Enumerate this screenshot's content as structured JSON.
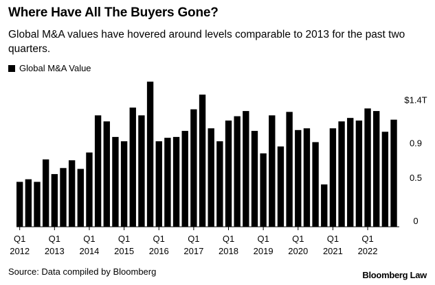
{
  "header": {
    "title": "Where Have All The Buyers Gone?",
    "subtitle": "Global M&A values have hovered around levels comparable to 2013 for the past two quarters."
  },
  "legend": {
    "label": "Global M&A Value"
  },
  "source": "Source: Data compiled by Bloomberg",
  "brand": "Bloomberg Law",
  "chart_data": {
    "type": "bar",
    "categories": [
      "Q1 2012",
      "Q2 2012",
      "Q3 2012",
      "Q4 2012",
      "Q1 2013",
      "Q2 2013",
      "Q3 2013",
      "Q4 2013",
      "Q1 2014",
      "Q2 2014",
      "Q3 2014",
      "Q4 2014",
      "Q1 2015",
      "Q2 2015",
      "Q3 2015",
      "Q4 2015",
      "Q1 2016",
      "Q2 2016",
      "Q3 2016",
      "Q4 2016",
      "Q1 2017",
      "Q2 2017",
      "Q3 2017",
      "Q4 2017",
      "Q1 2018",
      "Q2 2018",
      "Q3 2018",
      "Q4 2018",
      "Q1 2019",
      "Q2 2019",
      "Q3 2019",
      "Q4 2019",
      "Q1 2020",
      "Q2 2020",
      "Q3 2020",
      "Q4 2020",
      "Q1 2021",
      "Q2 2021",
      "Q3 2021",
      "Q4 2021",
      "Q1 2022",
      "Q2 2022",
      "Q3 2022",
      "Q4 2022"
    ],
    "series": [
      {
        "name": "Global M&A Value",
        "values": [
          0.52,
          0.55,
          0.52,
          0.78,
          0.61,
          0.68,
          0.77,
          0.67,
          0.86,
          1.29,
          1.22,
          1.04,
          0.99,
          1.38,
          1.29,
          1.68,
          0.99,
          1.03,
          1.04,
          1.11,
          1.36,
          1.53,
          1.14,
          0.99,
          1.23,
          1.28,
          1.34,
          1.11,
          0.85,
          1.29,
          0.93,
          1.33,
          1.12,
          1.14,
          0.98,
          0.49,
          1.14,
          1.22,
          1.26,
          1.23,
          1.37,
          1.34,
          1.1,
          1.24
        ]
      }
    ],
    "ytick_labels": [
      "$1.4T",
      "0.9",
      "0.5",
      "0"
    ],
    "ytick_values": [
      1.4,
      0.9,
      0.5,
      0
    ],
    "xtick_labels": [
      {
        "q": "Q1",
        "year": "2012",
        "index": 0
      },
      {
        "q": "Q1",
        "year": "2013",
        "index": 4
      },
      {
        "q": "Q1",
        "year": "2014",
        "index": 8
      },
      {
        "q": "Q1",
        "year": "2015",
        "index": 12
      },
      {
        "q": "Q1",
        "year": "2016",
        "index": 16
      },
      {
        "q": "Q1",
        "year": "2017",
        "index": 20
      },
      {
        "q": "Q1",
        "year": "2018",
        "index": 24
      },
      {
        "q": "Q1",
        "year": "2019",
        "index": 28
      },
      {
        "q": "Q1",
        "year": "2020",
        "index": 32
      },
      {
        "q": "Q1",
        "year": "2021",
        "index": 36
      },
      {
        "q": "Q1",
        "year": "2022",
        "index": 40
      }
    ],
    "ylim": [
      0,
      1.88
    ],
    "grid": false,
    "legend_position": "top-left",
    "bar_color": "#000000"
  }
}
